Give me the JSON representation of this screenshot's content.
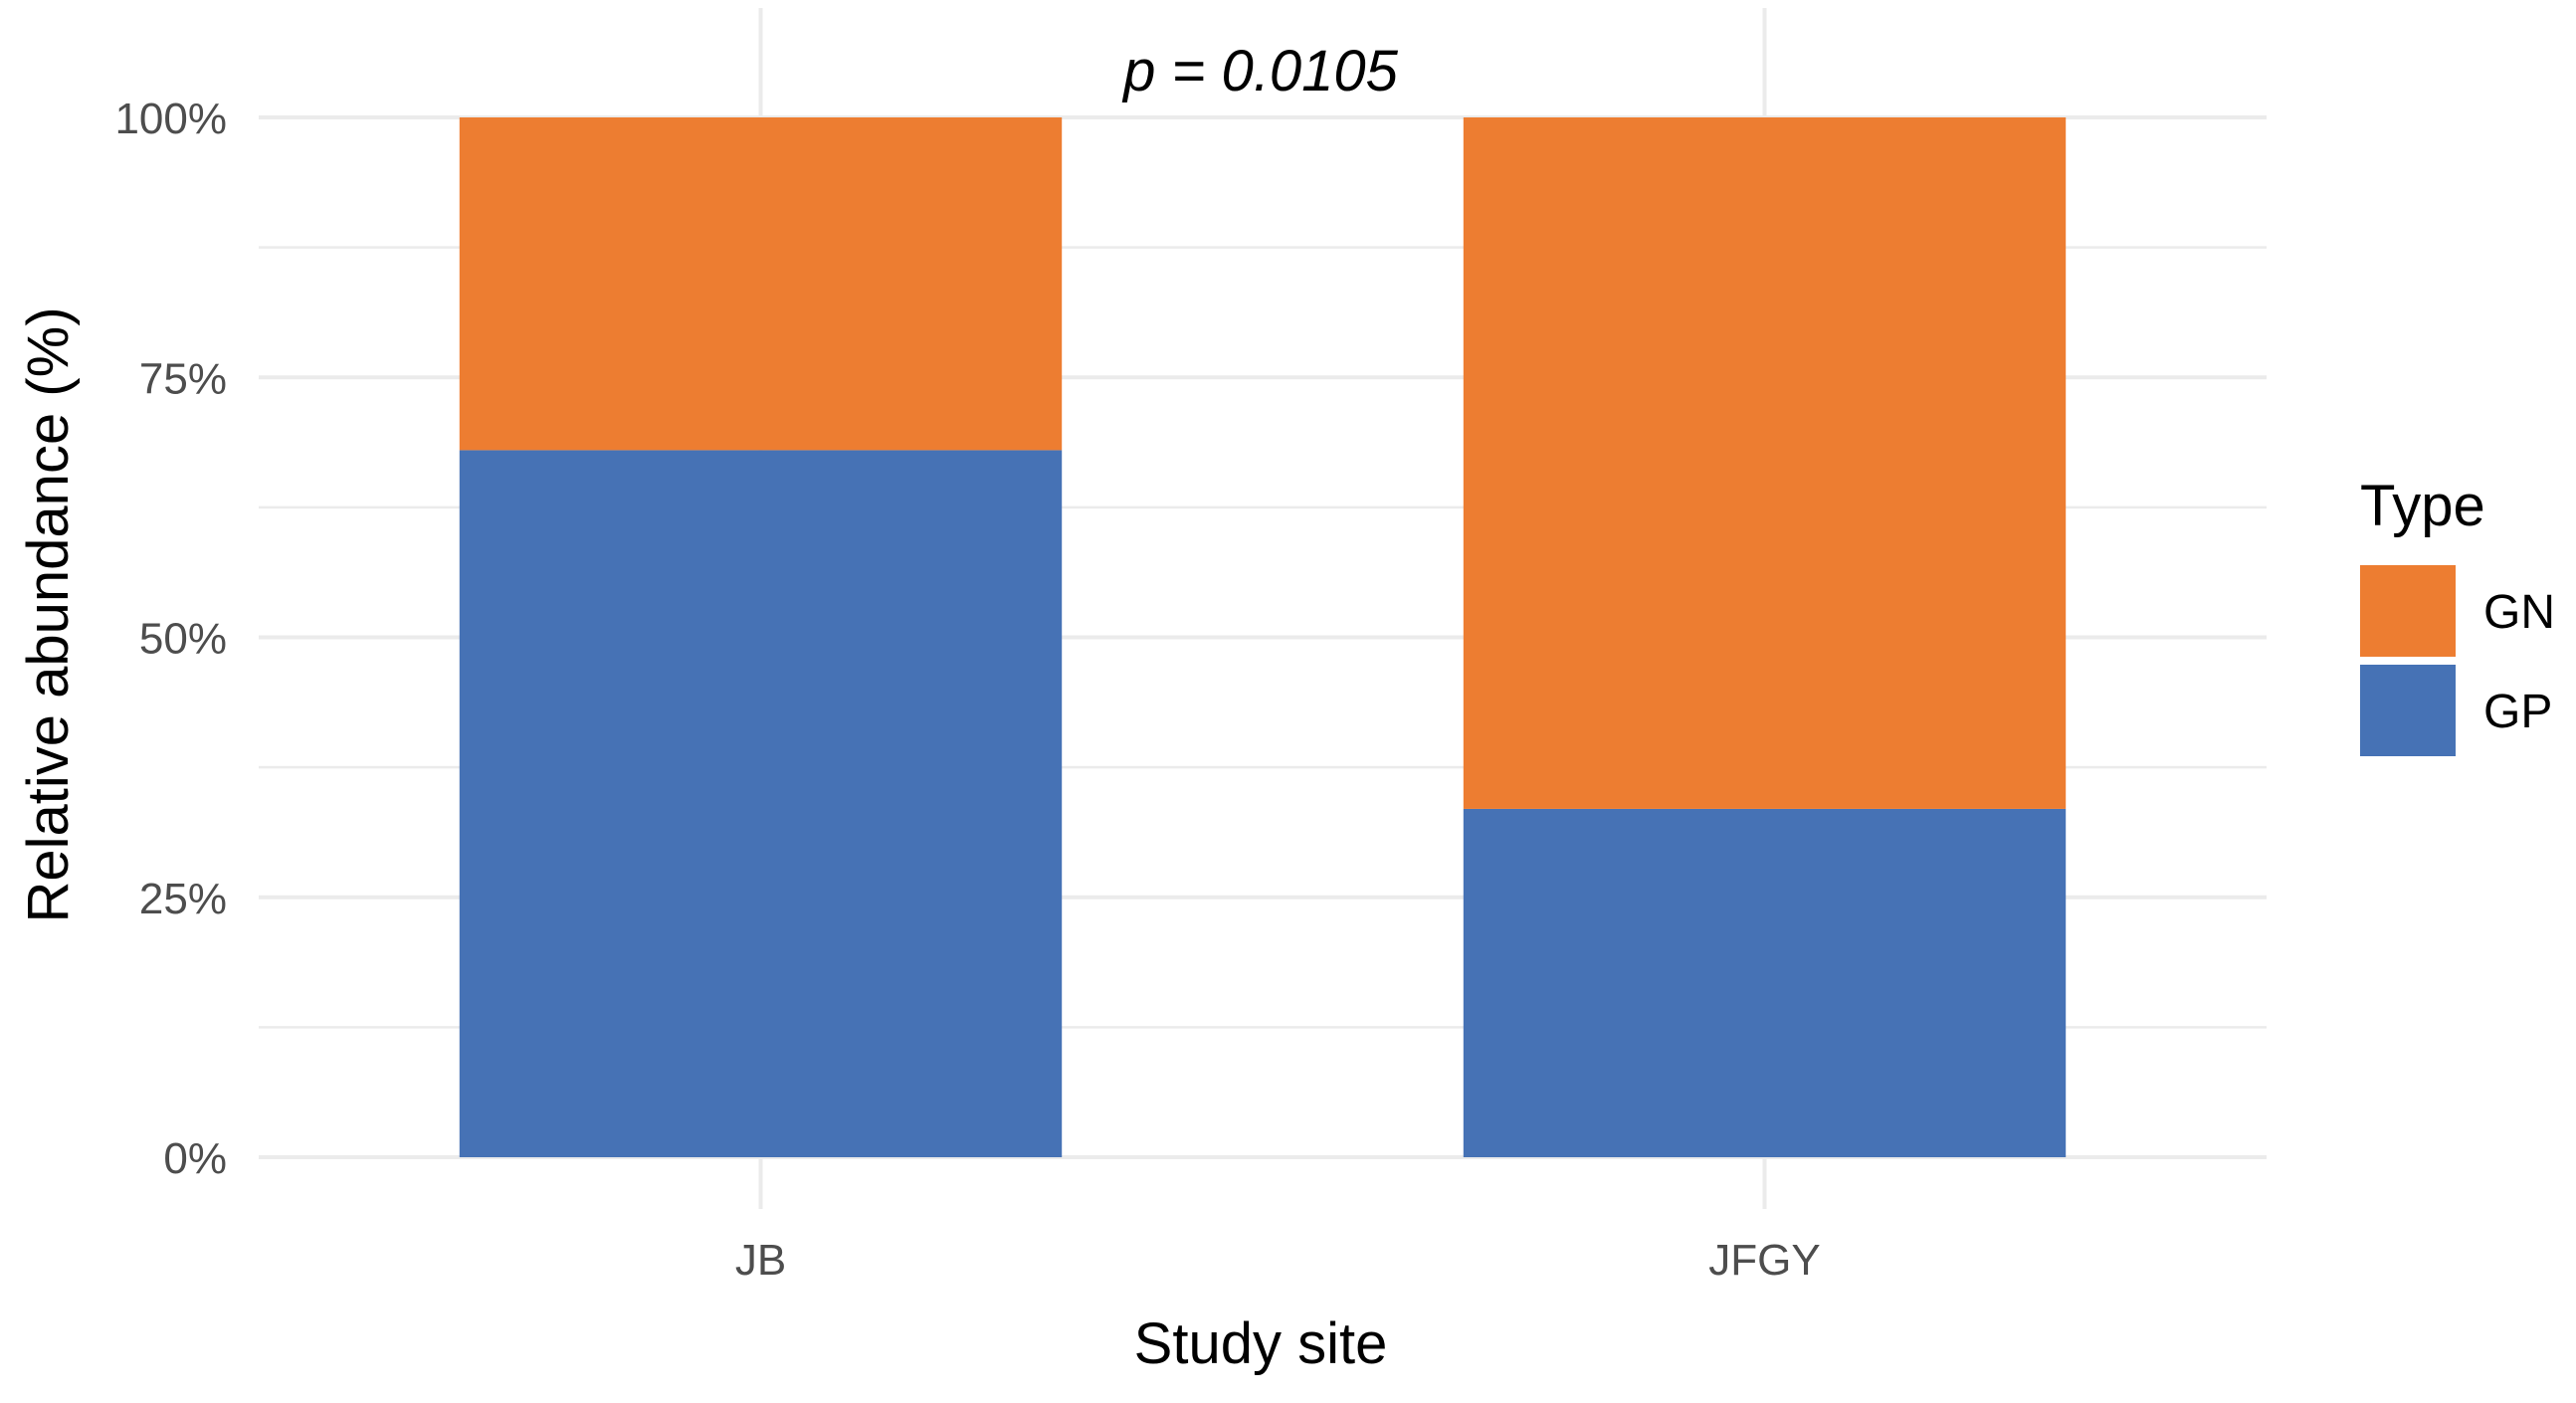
{
  "chart_data": {
    "type": "bar",
    "stacked": true,
    "categories": [
      "JB",
      "JFGY"
    ],
    "series": [
      {
        "name": "GP",
        "values": [
          68,
          33.5
        ],
        "color": "#4672B5"
      },
      {
        "name": "GN",
        "values": [
          32,
          66.5
        ],
        "color": "#ED7D31"
      }
    ],
    "xlabel": "Study site",
    "ylabel": "Relative abundance (%)",
    "ylim": [
      0,
      100
    ],
    "y_ticks": [
      0,
      25,
      50,
      75,
      100
    ],
    "y_tick_labels": [
      "0%",
      "25%",
      "50%",
      "75%",
      "100%"
    ],
    "annotation": "p = 0.0105",
    "legend": {
      "title": "Type",
      "position": "right",
      "entries": [
        {
          "name": "GN",
          "color": "#ED7D31"
        },
        {
          "name": "GP",
          "color": "#4672B5"
        }
      ]
    },
    "grid": true,
    "grid_color": "#EBEBEB"
  }
}
